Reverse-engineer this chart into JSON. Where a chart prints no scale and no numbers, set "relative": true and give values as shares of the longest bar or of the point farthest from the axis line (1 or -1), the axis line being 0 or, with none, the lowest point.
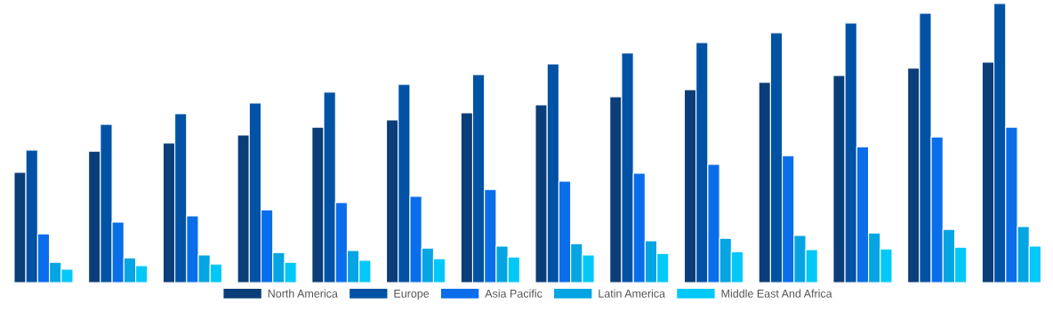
{
  "chart_data": {
    "type": "bar",
    "relative": true,
    "legend": "bottom",
    "grid": false,
    "categories": [
      null,
      null,
      null,
      null,
      null,
      null,
      null,
      null,
      null,
      null,
      null,
      null,
      null,
      null
    ],
    "series": [
      {
        "name": "North America",
        "color": "#0b3d78",
        "values": [
          0.395,
          0.471,
          0.5,
          0.529,
          0.557,
          0.583,
          0.608,
          0.637,
          0.666,
          0.691,
          0.717,
          0.742,
          0.768,
          0.79
        ]
      },
      {
        "name": "Europe",
        "color": "#0052a5",
        "values": [
          0.475,
          0.567,
          0.605,
          0.643,
          0.682,
          0.71,
          0.745,
          0.783,
          0.822,
          0.86,
          0.895,
          0.93,
          0.965,
          1
        ]
      },
      {
        "name": "Asia Pacific",
        "color": "#0a6eea",
        "values": [
          0.175,
          0.217,
          0.239,
          0.261,
          0.287,
          0.309,
          0.334,
          0.363,
          0.392,
          0.424,
          0.455,
          0.487,
          0.522,
          0.557
        ]
      },
      {
        "name": "Latin America",
        "color": "#05a5e3",
        "values": [
          0.073,
          0.089,
          0.099,
          0.108,
          0.115,
          0.124,
          0.131,
          0.14,
          0.15,
          0.159,
          0.169,
          0.178,
          0.191,
          0.201
        ]
      },
      {
        "name": "Middle East And Africa",
        "color": "#00c8f8",
        "values": [
          0.048,
          0.061,
          0.067,
          0.073,
          0.08,
          0.086,
          0.092,
          0.099,
          0.105,
          0.111,
          0.118,
          0.121,
          0.127,
          0.131
        ]
      }
    ]
  }
}
